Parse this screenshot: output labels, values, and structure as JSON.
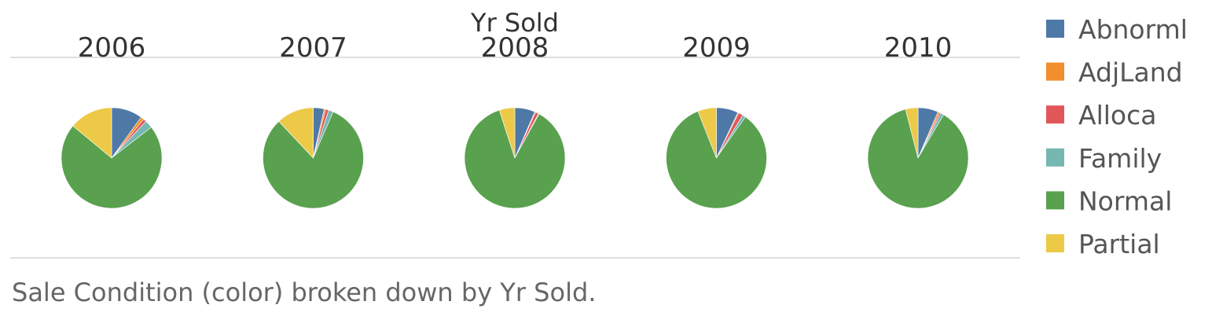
{
  "chart_data": {
    "type": "pie",
    "column_header": "Yr Sold",
    "caption": "Sale Condition (color) broken down by Yr Sold.",
    "categories": [
      "Abnorml",
      "AdjLand",
      "Alloca",
      "Family",
      "Normal",
      "Partial"
    ],
    "colors": {
      "Abnorml": "#4e79a7",
      "AdjLand": "#f28e2b",
      "Alloca": "#e15759",
      "Family": "#76b7b2",
      "Normal": "#59a14f",
      "Partial": "#edc948"
    },
    "legend_position": "right",
    "grid": false,
    "panels": [
      {
        "year": "2006",
        "values": {
          "Abnorml": 10,
          "AdjLand": 1,
          "Alloca": 1,
          "Family": 2.5,
          "Normal": 71.5,
          "Partial": 14
        }
      },
      {
        "year": "2007",
        "values": {
          "Abnorml": 3.5,
          "AdjLand": 0.5,
          "Alloca": 1,
          "Family": 1.5,
          "Normal": 81.5,
          "Partial": 12
        }
      },
      {
        "year": "2008",
        "values": {
          "Abnorml": 6.5,
          "AdjLand": 0.3,
          "Alloca": 1,
          "Family": 0.2,
          "Normal": 87,
          "Partial": 5
        }
      },
      {
        "year": "2009",
        "values": {
          "Abnorml": 7,
          "AdjLand": 0.3,
          "Alloca": 1.5,
          "Family": 1,
          "Normal": 84.2,
          "Partial": 6
        }
      },
      {
        "year": "2010",
        "values": {
          "Abnorml": 6.5,
          "AdjLand": 0.5,
          "Alloca": 0.5,
          "Family": 1,
          "Normal": 87.5,
          "Partial": 4
        }
      }
    ]
  }
}
